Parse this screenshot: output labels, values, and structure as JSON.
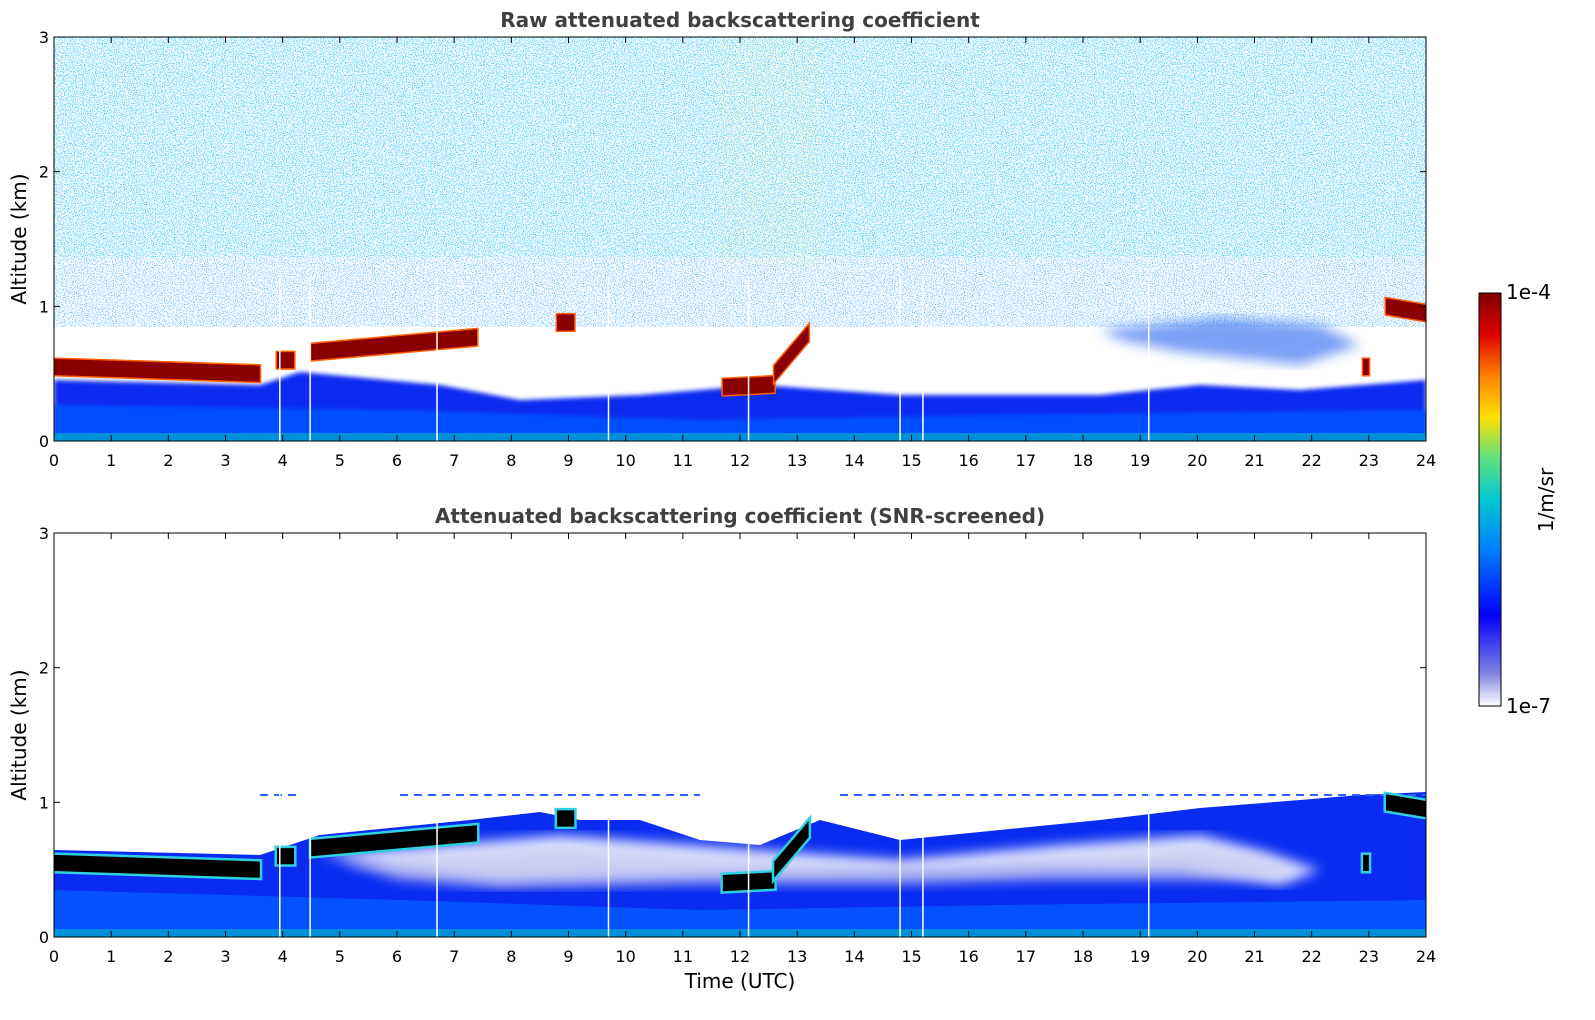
{
  "chart_data": [
    {
      "type": "heatmap",
      "title": "Raw attenuated backscattering coefficient",
      "xlabel": "",
      "ylabel": "Altitude (km)",
      "xlim": [
        0,
        24
      ],
      "ylim": [
        0,
        3
      ],
      "xticks": [
        0,
        1,
        2,
        3,
        4,
        5,
        6,
        7,
        8,
        9,
        10,
        11,
        12,
        13,
        14,
        15,
        16,
        17,
        18,
        19,
        20,
        21,
        22,
        23,
        24
      ],
      "yticks": [
        0,
        1,
        2,
        3
      ],
      "screened": false,
      "cloud_layer": {
        "description": "high-backscatter layer (dark red) altitude by time",
        "segments": [
          {
            "t": [
              0.0,
              3.6
            ],
            "z": [
              0.55,
              0.5
            ]
          },
          {
            "t": [
              3.9,
              4.2
            ],
            "z": [
              0.6,
              0.6
            ]
          },
          {
            "t": [
              4.5,
              7.4
            ],
            "z": [
              0.66,
              0.77
            ]
          },
          {
            "t": [
              8.8,
              9.1
            ],
            "z": [
              0.88,
              0.88
            ]
          },
          {
            "t": [
              11.7,
              12.6
            ],
            "z": [
              0.4,
              0.42
            ]
          },
          {
            "t": [
              12.6,
              13.2
            ],
            "z": [
              0.5,
              0.8
            ]
          },
          {
            "t": [
              22.9,
              23.0
            ],
            "z": [
              0.55,
              0.55
            ]
          },
          {
            "t": [
              23.3,
              24.0
            ],
            "z": [
              1.0,
              0.95
            ]
          }
        ]
      },
      "data_gaps_utc": [
        3.95,
        4.48,
        6.7,
        9.7,
        12.15,
        14.8,
        15.2,
        19.15
      ]
    },
    {
      "type": "heatmap",
      "title": "Attenuated backscattering coefficient (SNR-screened)",
      "xlabel": "Time (UTC)",
      "ylabel": "Altitude (km)",
      "xlim": [
        0,
        24
      ],
      "ylim": [
        0,
        3
      ],
      "xticks": [
        0,
        1,
        2,
        3,
        4,
        5,
        6,
        7,
        8,
        9,
        10,
        11,
        12,
        13,
        14,
        15,
        16,
        17,
        18,
        19,
        20,
        21,
        22,
        23,
        24
      ],
      "yticks": [
        0,
        1,
        2,
        3
      ],
      "screened": true,
      "data_gaps_utc": [
        3.95,
        4.48,
        6.7,
        9.7,
        12.15,
        14.8,
        15.2,
        19.15
      ]
    }
  ],
  "colorbar": {
    "label": "1/m/sr",
    "max_label": "1e-4",
    "min_label": "1e-7",
    "range": [
      "1e-7",
      "1e-4"
    ],
    "colormap": [
      "#ffffff",
      "#c8c8f0",
      "#0000ff",
      "#0080ff",
      "#00c0d0",
      "#40e0a0",
      "#c0f040",
      "#ffe000",
      "#ff8000",
      "#e00000",
      "#800000"
    ]
  }
}
